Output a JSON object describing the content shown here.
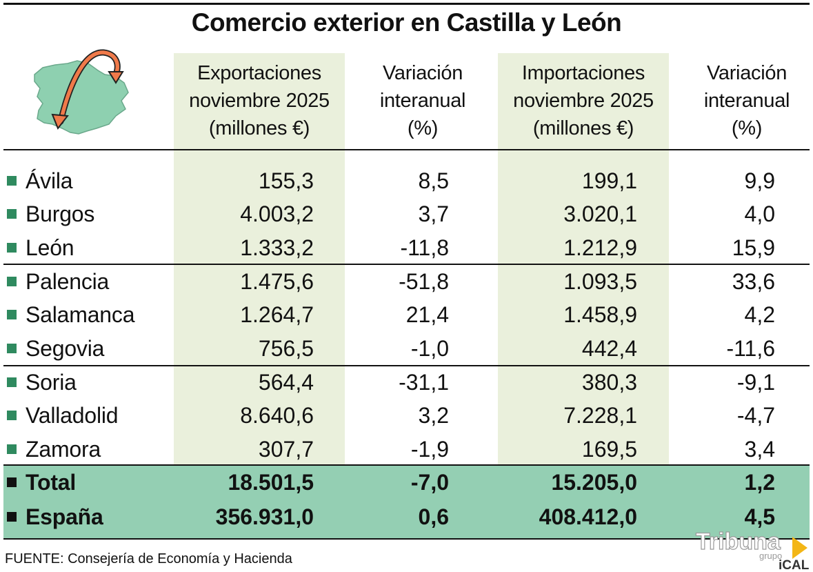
{
  "chart_data": {
    "type": "table",
    "title": "Comercio exterior en Castilla y León",
    "columns": [
      "Exportaciones noviembre 2025 (millones €)",
      "Variación interanual (%)",
      "Importaciones noviembre 2025 (millones €)",
      "Variación interanual (%)"
    ],
    "header": {
      "c1": [
        "Exportaciones",
        "noviembre 2025",
        "(millones €)"
      ],
      "c2": [
        "Variación",
        "interanual",
        "(%)"
      ],
      "c3": [
        "Importaciones",
        "noviembre 2025",
        "(millones €)"
      ],
      "c4": [
        "Variación",
        "interanual",
        "(%)"
      ]
    },
    "rows": [
      {
        "name": "Ávila",
        "exp": "155,3",
        "exp_var": "8,5",
        "imp": "199,1",
        "imp_var": "9,9"
      },
      {
        "name": "Burgos",
        "exp": "4.003,2",
        "exp_var": "3,7",
        "imp": "3.020,1",
        "imp_var": "4,0"
      },
      {
        "name": "León",
        "exp": "1.333,2",
        "exp_var": "-11,8",
        "imp": "1.212,9",
        "imp_var": "15,9"
      },
      {
        "name": "Palencia",
        "exp": "1.475,6",
        "exp_var": "-51,8",
        "imp": "1.093,5",
        "imp_var": "33,6"
      },
      {
        "name": "Salamanca",
        "exp": "1.264,7",
        "exp_var": "21,4",
        "imp": "1.458,9",
        "imp_var": "4,2"
      },
      {
        "name": "Segovia",
        "exp": "756,5",
        "exp_var": "-1,0",
        "imp": "442,4",
        "imp_var": "-11,6"
      },
      {
        "name": "Soria",
        "exp": "564,4",
        "exp_var": "-31,1",
        "imp": "380,3",
        "imp_var": "-9,1"
      },
      {
        "name": "Valladolid",
        "exp": "8.640,6",
        "exp_var": "3,2",
        "imp": "7.228,1",
        "imp_var": "-4,7"
      },
      {
        "name": "Zamora",
        "exp": "307,7",
        "exp_var": "-1,9",
        "imp": "169,5",
        "imp_var": "3,4"
      }
    ],
    "totals": [
      {
        "name": "Total",
        "exp": "18.501,5",
        "exp_var": "-7,0",
        "imp": "15.205,0",
        "imp_var": "1,2"
      },
      {
        "name": "España",
        "exp": "356.931,0",
        "exp_var": "0,6",
        "imp": "408.412,0",
        "imp_var": "4,5"
      }
    ]
  },
  "source": "FUENTE: Consejería de Economía y Hacienda",
  "logo": {
    "brand": "Tribuna",
    "sub": "grupo",
    "agency": "iCAL"
  },
  "colors": {
    "column_shade": "#eaf0dc",
    "total_band": "#94cfb3",
    "bullet_region": "#2f8a5f",
    "bullet_total": "#111111",
    "map_fill": "#8ed0b0",
    "arrow": "#f07a4a"
  },
  "icons": {
    "map": "castilla-y-leon-map-icon",
    "arrows": "trade-arrows-icon"
  }
}
